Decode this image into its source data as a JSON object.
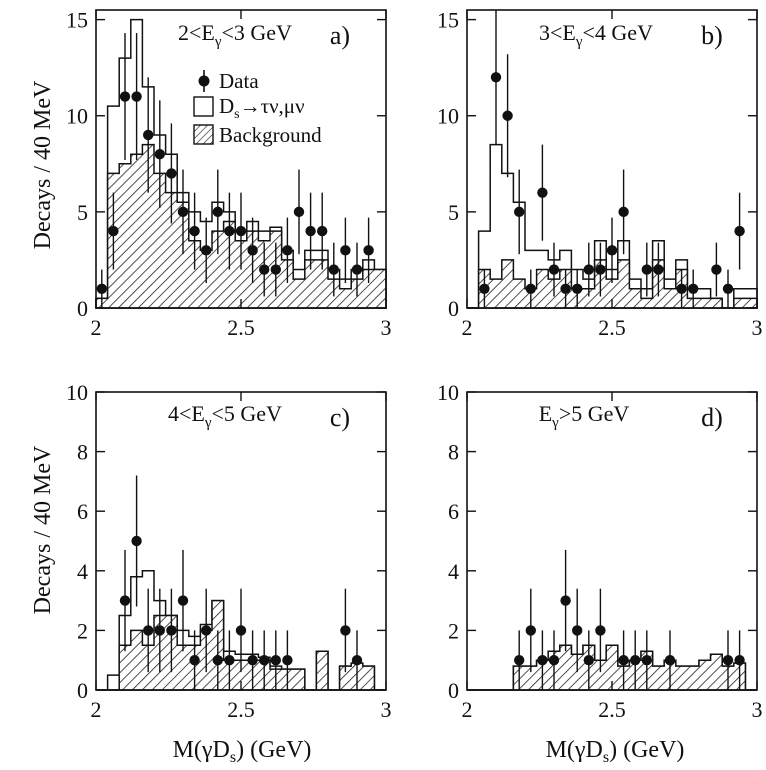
{
  "ylabel": "Decays / 40 MeV",
  "xlabel": "M(γD",
  "xlabel_sub": "s",
  "xlabel_tail": ") (GeV)",
  "legend": {
    "data": "Data",
    "signal_a": "D",
    "signal_sub": "s",
    "signal_b": "→τν,μν",
    "background": "Background"
  },
  "colors": {
    "ink": "#111111",
    "signal_fill": "#ffffff",
    "background_hatch": "#222222"
  },
  "chart_data": [
    {
      "id": "a",
      "letter": "a)",
      "title_pre": "2<E",
      "title_sub": "γ",
      "title_post": "<3 GeV",
      "type": "histogram",
      "xlim": [
        2,
        3
      ],
      "ylim": [
        0,
        15.5
      ],
      "xticks": [
        "2",
        "2.5",
        "3"
      ],
      "yticks": [
        "0",
        "5",
        "10",
        "15"
      ],
      "x_tick_values": [
        2,
        2.5,
        3
      ],
      "y_tick_values": [
        0,
        5,
        10,
        15
      ],
      "bin_edges": [
        2.0,
        2.04,
        2.08,
        2.12,
        2.16,
        2.2,
        2.24,
        2.28,
        2.32,
        2.36,
        2.4,
        2.44,
        2.48,
        2.52,
        2.56,
        2.6,
        2.64,
        2.68,
        2.72,
        2.76,
        2.8,
        2.84,
        2.88,
        2.92,
        2.96,
        3.0
      ],
      "background": [
        0.5,
        7,
        7.5,
        8,
        8.5,
        7,
        6,
        5.5,
        3.5,
        3,
        4,
        4.5,
        3.5,
        4,
        3.5,
        4,
        2.5,
        1.5,
        2.5,
        2.5,
        1.5,
        1,
        1.5,
        2,
        2
      ],
      "signal_total": [
        0.5,
        10.5,
        13,
        15,
        11.5,
        9,
        8,
        6,
        5,
        4.5,
        5.5,
        5,
        4,
        4.5,
        4,
        4.2,
        3,
        2,
        3,
        3,
        2,
        1.5,
        2,
        2.5,
        2
      ],
      "data_x": [
        2.02,
        2.06,
        2.1,
        2.14,
        2.18,
        2.22,
        2.26,
        2.3,
        2.34,
        2.38,
        2.42,
        2.46,
        2.5,
        2.54,
        2.58,
        2.62,
        2.66,
        2.7,
        2.74,
        2.78,
        2.82,
        2.86,
        2.9,
        2.94
      ],
      "data_y": [
        1,
        4,
        11,
        11,
        9,
        8,
        7,
        5,
        4,
        3,
        5,
        4,
        4,
        3,
        2,
        2,
        3,
        5,
        4,
        4,
        2,
        3,
        2,
        3
      ],
      "data_err": [
        1,
        2,
        3.3,
        3.3,
        3,
        2.8,
        2.6,
        2.2,
        2,
        1.7,
        2.2,
        2,
        2,
        1.7,
        1.4,
        1.4,
        1.7,
        2.2,
        2,
        2,
        1.4,
        1.7,
        1.4,
        1.7
      ]
    },
    {
      "id": "b",
      "letter": "b)",
      "title_pre": "3<E",
      "title_sub": "γ",
      "title_post": "<4 GeV",
      "type": "histogram",
      "xlim": [
        2,
        3
      ],
      "ylim": [
        0,
        15.5
      ],
      "xticks": [
        "2",
        "2.5",
        "3"
      ],
      "yticks": [
        "0",
        "5",
        "10",
        "15"
      ],
      "x_tick_values": [
        2,
        2.5,
        3
      ],
      "y_tick_values": [
        0,
        5,
        10,
        15
      ],
      "bin_edges": [
        2.0,
        2.04,
        2.08,
        2.12,
        2.16,
        2.2,
        2.24,
        2.28,
        2.32,
        2.36,
        2.4,
        2.44,
        2.48,
        2.52,
        2.56,
        2.6,
        2.64,
        2.68,
        2.72,
        2.76,
        2.8,
        2.84,
        2.88,
        2.92,
        2.96,
        3.0
      ],
      "background": [
        0,
        2,
        1.5,
        2.5,
        1.5,
        1,
        2,
        1.5,
        2,
        1,
        1,
        2.5,
        1.5,
        2.5,
        1,
        0.5,
        2.5,
        1,
        2,
        0.5,
        0.5,
        0.5,
        0,
        0.5,
        0.5
      ],
      "signal_total": [
        0,
        4,
        8.5,
        7,
        5.5,
        3,
        3,
        2.5,
        3,
        2,
        1.5,
        3.5,
        2,
        3.5,
        1.5,
        1,
        3.5,
        1.5,
        2.5,
        1,
        1,
        0.5,
        0,
        1,
        1
      ],
      "data_x": [
        2.06,
        2.1,
        2.14,
        2.18,
        2.22,
        2.26,
        2.3,
        2.34,
        2.38,
        2.42,
        2.46,
        2.5,
        2.54,
        2.62,
        2.66,
        2.74,
        2.78,
        2.86,
        2.9,
        2.94
      ],
      "data_y": [
        1,
        12,
        10,
        5,
        1,
        6,
        2,
        1,
        1,
        2,
        2,
        3,
        5,
        2,
        2,
        1,
        1,
        2,
        1,
        4
      ],
      "data_err": [
        1,
        3.5,
        3.2,
        2.2,
        1,
        2.5,
        1.4,
        1,
        1,
        1.4,
        1.4,
        1.7,
        2.2,
        1.4,
        1.4,
        1,
        1,
        1.4,
        1,
        2
      ]
    },
    {
      "id": "c",
      "letter": "c)",
      "title_pre": "4<E",
      "title_sub": "γ",
      "title_post": "<5 GeV",
      "type": "histogram",
      "xlim": [
        2,
        3
      ],
      "ylim": [
        0,
        10
      ],
      "xticks": [
        "2",
        "2.5",
        "3"
      ],
      "yticks": [
        "0",
        "2",
        "4",
        "6",
        "8",
        "10"
      ],
      "x_tick_values": [
        2,
        2.5,
        3
      ],
      "y_tick_values": [
        0,
        2,
        4,
        6,
        8,
        10
      ],
      "bin_edges": [
        2.0,
        2.04,
        2.08,
        2.12,
        2.16,
        2.2,
        2.24,
        2.28,
        2.32,
        2.36,
        2.4,
        2.44,
        2.48,
        2.52,
        2.56,
        2.6,
        2.64,
        2.68,
        2.72,
        2.76,
        2.8,
        2.84,
        2.88,
        2.92,
        2.96,
        3.0
      ],
      "background": [
        0,
        0,
        1.5,
        2,
        1.5,
        2.5,
        2.5,
        1.5,
        1.5,
        2,
        3,
        1,
        1,
        1,
        1,
        0.7,
        0.7,
        0.7,
        0,
        1.3,
        0,
        0.8,
        0.9,
        0.8,
        0
      ],
      "signal_total": [
        0,
        0.5,
        2.5,
        3.8,
        4,
        3,
        2.5,
        2,
        1.8,
        2.2,
        3,
        1.3,
        1.2,
        1.2,
        1.1,
        0.8,
        0.7,
        0.7,
        0,
        1.3,
        0,
        0.8,
        0.9,
        0.8,
        0
      ],
      "data_x": [
        2.1,
        2.14,
        2.18,
        2.22,
        2.26,
        2.3,
        2.34,
        2.38,
        2.42,
        2.46,
        2.5,
        2.54,
        2.58,
        2.62,
        2.66,
        2.86,
        2.9
      ],
      "data_y": [
        3,
        5,
        2,
        2,
        2,
        3,
        1,
        2,
        1,
        1,
        2,
        1,
        1,
        1,
        1,
        2,
        1
      ],
      "data_err": [
        1.7,
        2.2,
        1.4,
        1.4,
        1.4,
        1.7,
        1,
        1.4,
        1,
        1,
        1.4,
        1,
        1,
        1,
        1,
        1.4,
        1
      ]
    },
    {
      "id": "d",
      "letter": "d)",
      "title_pre": "E",
      "title_sub": "γ",
      "title_post": ">5 GeV",
      "type": "histogram",
      "xlim": [
        2,
        3
      ],
      "ylim": [
        0,
        10
      ],
      "xticks": [
        "2",
        "2.5",
        "3"
      ],
      "yticks": [
        "0",
        "2",
        "4",
        "6",
        "8",
        "10"
      ],
      "x_tick_values": [
        2,
        2.5,
        3
      ],
      "y_tick_values": [
        0,
        2,
        4,
        6,
        8,
        10
      ],
      "bin_edges": [
        2.0,
        2.04,
        2.08,
        2.12,
        2.16,
        2.2,
        2.24,
        2.28,
        2.32,
        2.36,
        2.4,
        2.44,
        2.48,
        2.52,
        2.56,
        2.6,
        2.64,
        2.68,
        2.72,
        2.76,
        2.8,
        2.84,
        2.88,
        2.92,
        2.96,
        3.0
      ],
      "background": [
        0,
        0,
        0,
        0,
        0.8,
        0.8,
        1,
        1.3,
        1.5,
        1.2,
        1.5,
        1,
        1.5,
        0.8,
        1,
        1.3,
        0.8,
        1,
        0.8,
        0.8,
        1,
        1.2,
        0.8,
        0.9,
        0
      ],
      "signal_total": [
        0,
        0,
        0,
        0,
        0.8,
        0.8,
        1,
        1.3,
        1.5,
        1.2,
        1.5,
        1,
        1.5,
        0.8,
        1,
        1.3,
        0.8,
        1,
        0.8,
        0.8,
        1,
        1.2,
        0.8,
        0.9,
        0
      ],
      "data_x": [
        2.18,
        2.22,
        2.26,
        2.3,
        2.34,
        2.38,
        2.42,
        2.46,
        2.54,
        2.58,
        2.62,
        2.7,
        2.9,
        2.94
      ],
      "data_y": [
        1,
        2,
        1,
        1,
        3,
        2,
        1,
        2,
        1,
        1,
        1,
        1,
        1,
        1
      ],
      "data_err": [
        1,
        1.4,
        1,
        1,
        1.7,
        1.4,
        1,
        1.4,
        1,
        1,
        1,
        1,
        1,
        1
      ]
    }
  ]
}
